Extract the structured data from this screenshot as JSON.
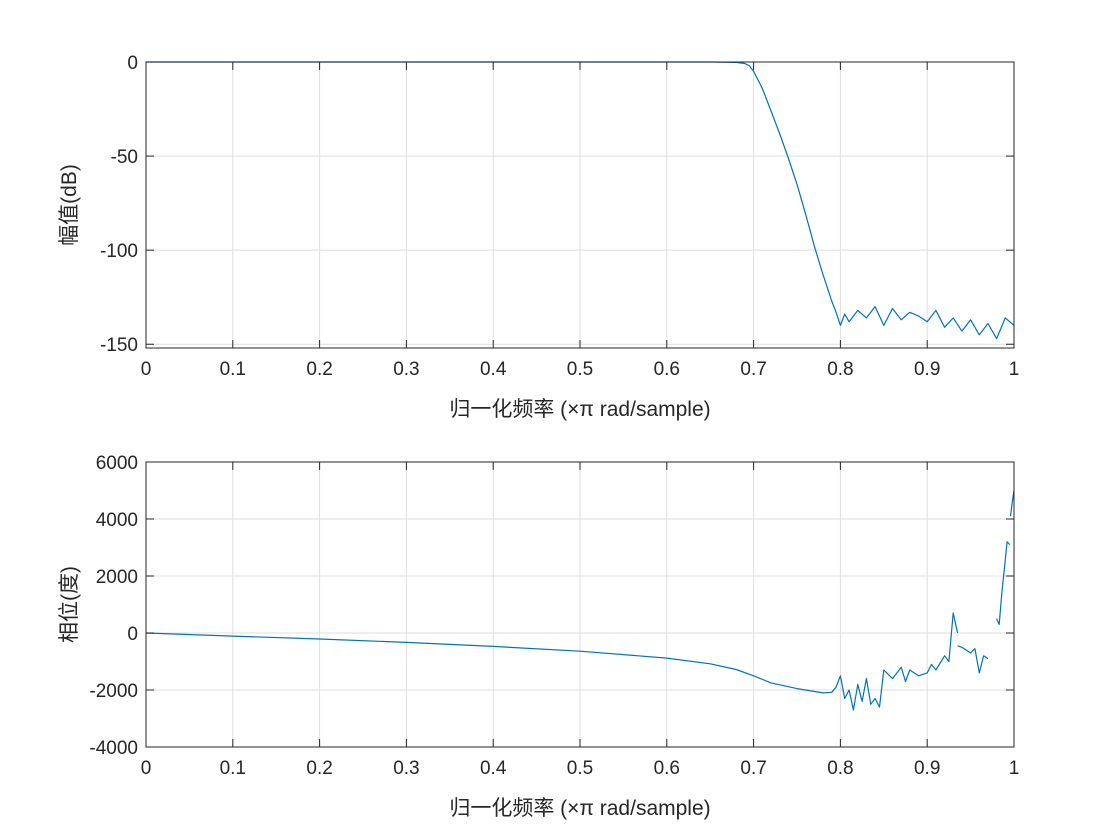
{
  "chart_data": [
    {
      "type": "line",
      "title": "",
      "xlabel": "归一化频率 (×π rad/sample)",
      "ylabel": "幅值(dB)",
      "xlim": [
        0,
        1
      ],
      "ylim": [
        -152,
        0
      ],
      "xticks": [
        0,
        0.1,
        0.2,
        0.3,
        0.4,
        0.5,
        0.6,
        0.7,
        0.8,
        0.9,
        1
      ],
      "xtick_labels": [
        "0",
        "0.1",
        "0.2",
        "0.3",
        "0.4",
        "0.5",
        "0.6",
        "0.7",
        "0.8",
        "0.9",
        "1"
      ],
      "yticks": [
        -150,
        -100,
        -50,
        0
      ],
      "ytick_labels": [
        "-150",
        "-100",
        "-50",
        "0"
      ],
      "grid": true,
      "series": [
        {
          "color": "#0072BD",
          "x": [
            0,
            0.1,
            0.2,
            0.3,
            0.4,
            0.5,
            0.6,
            0.65,
            0.68,
            0.69,
            0.695,
            0.7,
            0.71,
            0.72,
            0.73,
            0.74,
            0.75,
            0.76,
            0.77,
            0.78,
            0.785,
            0.79,
            0.795,
            0.8,
            0.805,
            0.81,
            0.82,
            0.83,
            0.84,
            0.85,
            0.86,
            0.87,
            0.88,
            0.89,
            0.9,
            0.91,
            0.92,
            0.93,
            0.94,
            0.95,
            0.96,
            0.97,
            0.98,
            0.99,
            1.0
          ],
          "y": [
            0,
            0,
            0,
            0,
            0,
            0,
            0,
            0,
            -0.2,
            -0.8,
            -2,
            -5,
            -14,
            -26,
            -38,
            -51,
            -65,
            -81,
            -98,
            -113,
            -120,
            -127,
            -133,
            -140,
            -134,
            -138,
            -132,
            -136,
            -130,
            -140,
            -131,
            -137,
            -133,
            -135,
            -138,
            -132,
            -141,
            -136,
            -143,
            -137,
            -145,
            -139,
            -147,
            -136,
            -140
          ]
        }
      ]
    },
    {
      "type": "line",
      "title": "",
      "xlabel": "归一化频率 (×π rad/sample)",
      "ylabel": "相位(度)",
      "xlim": [
        0,
        1
      ],
      "ylim": [
        -4000,
        6000
      ],
      "xticks": [
        0,
        0.1,
        0.2,
        0.3,
        0.4,
        0.5,
        0.6,
        0.7,
        0.8,
        0.9,
        1
      ],
      "xtick_labels": [
        "0",
        "0.1",
        "0.2",
        "0.3",
        "0.4",
        "0.5",
        "0.6",
        "0.7",
        "0.8",
        "0.9",
        "1"
      ],
      "yticks": [
        -4000,
        -2000,
        0,
        2000,
        4000,
        6000
      ],
      "ytick_labels": [
        "-4000",
        "-2000",
        "0",
        "2000",
        "4000",
        "6000"
      ],
      "grid": true,
      "series": [
        {
          "color": "#0072BD",
          "x": [
            0,
            0.1,
            0.2,
            0.3,
            0.4,
            0.5,
            0.6,
            0.65,
            0.68,
            0.7,
            0.72,
            0.75,
            0.78,
            0.79,
            0.795,
            0.8,
            0.805,
            0.81,
            0.815,
            0.82,
            0.825,
            0.83,
            0.835,
            0.84,
            0.845,
            0.85,
            0.86,
            0.87,
            0.875,
            0.88,
            0.89,
            0.9,
            0.905,
            0.91,
            0.92,
            0.925,
            0.93,
            0.935
          ],
          "y": [
            0,
            -110,
            -210,
            -330,
            -470,
            -640,
            -880,
            -1080,
            -1280,
            -1500,
            -1750,
            -1950,
            -2100,
            -2080,
            -1900,
            -1500,
            -2300,
            -2000,
            -2700,
            -1800,
            -2400,
            -1600,
            -2500,
            -2300,
            -2600,
            -1300,
            -1600,
            -1200,
            -1700,
            -1300,
            -1500,
            -1400,
            -1100,
            -1300,
            -800,
            -1000,
            700,
            0
          ]
        },
        {
          "color": "#0072BD",
          "x": [
            0.935,
            0.94,
            0.945,
            0.95,
            0.955,
            0.96,
            0.965,
            0.97
          ],
          "y": [
            -450,
            -500,
            -600,
            -700,
            -550,
            -1400,
            -800,
            -900
          ]
        },
        {
          "color": "#0072BD",
          "x": [
            0.98,
            0.983,
            0.986,
            0.989,
            0.992,
            0.995
          ],
          "y": [
            500,
            300,
            1400,
            2300,
            3200,
            3100
          ]
        },
        {
          "color": "#0072BD",
          "x": [
            0.996,
            0.998,
            1.0
          ],
          "y": [
            4100,
            4600,
            5000
          ]
        }
      ]
    }
  ]
}
